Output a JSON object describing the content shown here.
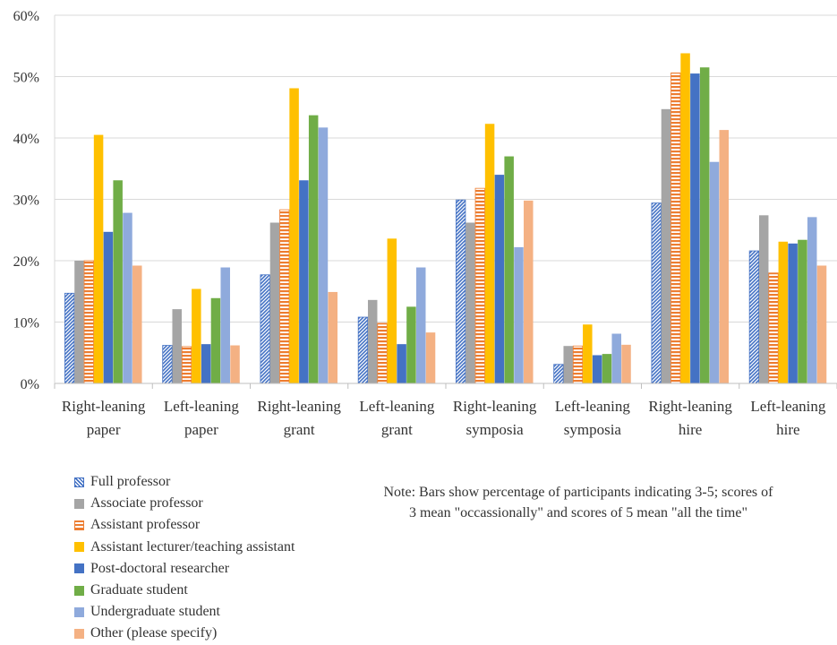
{
  "chart_data": {
    "type": "bar",
    "categories": [
      [
        "Right-leaning",
        "paper"
      ],
      [
        "Left-leaning",
        "paper"
      ],
      [
        "Right-leaning",
        "grant"
      ],
      [
        "Left-leaning",
        "grant"
      ],
      [
        "Right-leaning",
        "symposia"
      ],
      [
        "Left-leaning",
        "symposia"
      ],
      [
        "Right-leaning",
        "hire"
      ],
      [
        "Left-leaning",
        "hire"
      ]
    ],
    "series": [
      {
        "name": "Full professor",
        "color": "#4472C4",
        "pattern": "diag",
        "values": [
          14.7,
          6.2,
          17.7,
          10.8,
          29.9,
          3.1,
          29.4,
          21.6
        ]
      },
      {
        "name": "Associate professor",
        "color": "#A5A5A5",
        "pattern": "solid",
        "values": [
          20.0,
          12.1,
          26.2,
          13.6,
          26.2,
          6.1,
          44.7,
          27.4
        ]
      },
      {
        "name": "Assistant professor",
        "color": "#ED7D31",
        "pattern": "hstripe",
        "values": [
          20.0,
          6.0,
          28.3,
          9.8,
          31.8,
          6.1,
          50.6,
          18.0
        ]
      },
      {
        "name": "Assistant lecturer/teaching assistant",
        "color": "#FFC000",
        "pattern": "solid",
        "values": [
          40.5,
          15.4,
          48.1,
          23.6,
          42.3,
          9.6,
          53.8,
          23.1
        ]
      },
      {
        "name": "Post-doctoral researcher",
        "color": "#4472C4",
        "pattern": "solid",
        "values": [
          24.7,
          6.4,
          33.1,
          6.4,
          34.0,
          4.6,
          50.5,
          22.8
        ]
      },
      {
        "name": "Graduate student",
        "color": "#70AD47",
        "pattern": "solid",
        "values": [
          33.1,
          13.9,
          43.7,
          12.5,
          37.0,
          4.8,
          51.5,
          23.4
        ]
      },
      {
        "name": "Undergraduate student",
        "color": "#8FAADC",
        "pattern": "solid",
        "values": [
          27.8,
          18.9,
          41.7,
          18.9,
          22.2,
          8.1,
          36.1,
          27.1
        ]
      },
      {
        "name": "Other (please specify)",
        "color": "#F4B183",
        "pattern": "solid",
        "values": [
          19.2,
          6.2,
          14.9,
          8.3,
          29.8,
          6.3,
          41.3,
          19.2
        ]
      }
    ],
    "y_ticks": [
      "0%",
      "10%",
      "20%",
      "30%",
      "40%",
      "50%",
      "60%"
    ],
    "ylim": [
      0,
      60
    ],
    "grid": true,
    "legend_position": "bottom-left"
  },
  "note": {
    "line1": "Note: Bars show percentage of participants indicating 3-5; scores of",
    "line2": "3 mean \"occassionally\" and scores of 5 mean \"all the time\""
  }
}
